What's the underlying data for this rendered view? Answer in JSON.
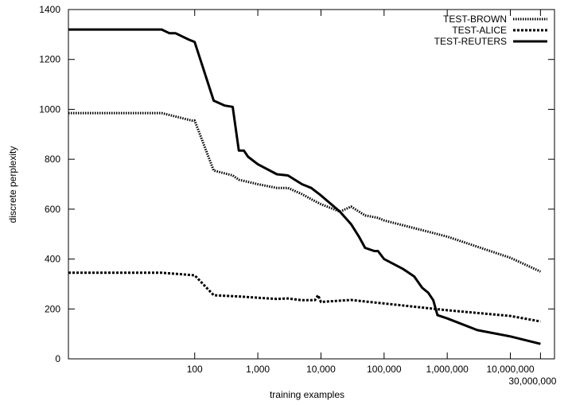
{
  "chart_data": {
    "type": "line",
    "title": "",
    "xlabel": "training examples",
    "ylabel": "discrete perplexity",
    "x_scale": "log",
    "xlim": [
      1,
      50000000
    ],
    "ylim": [
      0,
      1400
    ],
    "grid": false,
    "legend_position": "top-right",
    "x_tick_values": [
      100,
      1000,
      10000,
      100000,
      1000000,
      10000000,
      30000000
    ],
    "x_tick_labels": [
      "100",
      "1,000",
      "10,000",
      "100,000",
      "1,000,000",
      "10,000,000",
      "30,000,000"
    ],
    "y_tick_values": [
      0,
      200,
      400,
      600,
      800,
      1000,
      1200,
      1400
    ],
    "y_tick_labels": [
      "0",
      "200",
      "400",
      "600",
      "800",
      "1000",
      "1200",
      "1400"
    ],
    "series": [
      {
        "name": "TEST-BROWN",
        "style": "dotted",
        "color": "#000000",
        "x": [
          1,
          30,
          90,
          100,
          200,
          400,
          500,
          1000,
          2000,
          3000,
          5000,
          8000,
          10000,
          20000,
          30000,
          50000,
          80000,
          100000,
          1000000,
          10000000,
          30000000
        ],
        "y": [
          985,
          985,
          955,
          955,
          755,
          735,
          718,
          700,
          685,
          685,
          660,
          632,
          620,
          590,
          610,
          575,
          565,
          555,
          490,
          405,
          350
        ]
      },
      {
        "name": "TEST-ALICE",
        "style": "dashed",
        "color": "#000000",
        "x": [
          1,
          30,
          100,
          200,
          500,
          1000,
          2000,
          3000,
          5000,
          8000,
          9000,
          10000,
          20000,
          30000,
          50000,
          100000,
          1000000,
          10000000,
          30000000
        ],
        "y": [
          345,
          345,
          335,
          255,
          250,
          245,
          240,
          242,
          235,
          235,
          255,
          228,
          233,
          236,
          230,
          222,
          195,
          172,
          150
        ]
      },
      {
        "name": "TEST-REUTERS",
        "style": "solid",
        "color": "#000000",
        "x": [
          1,
          30,
          40,
          50,
          80,
          100,
          200,
          300,
          400,
          500,
          600,
          700,
          1000,
          2000,
          3000,
          5000,
          7000,
          10000,
          20000,
          30000,
          40000,
          50000,
          70000,
          80000,
          100000,
          200000,
          300000,
          400000,
          500000,
          600000,
          700000,
          1000000,
          3000000,
          10000000,
          30000000
        ],
        "y": [
          1320,
          1320,
          1305,
          1305,
          1280,
          1270,
          1035,
          1015,
          1010,
          835,
          835,
          810,
          780,
          740,
          735,
          700,
          685,
          655,
          590,
          540,
          490,
          445,
          432,
          432,
          400,
          360,
          330,
          285,
          265,
          235,
          175,
          162,
          115,
          90,
          60
        ]
      }
    ]
  }
}
